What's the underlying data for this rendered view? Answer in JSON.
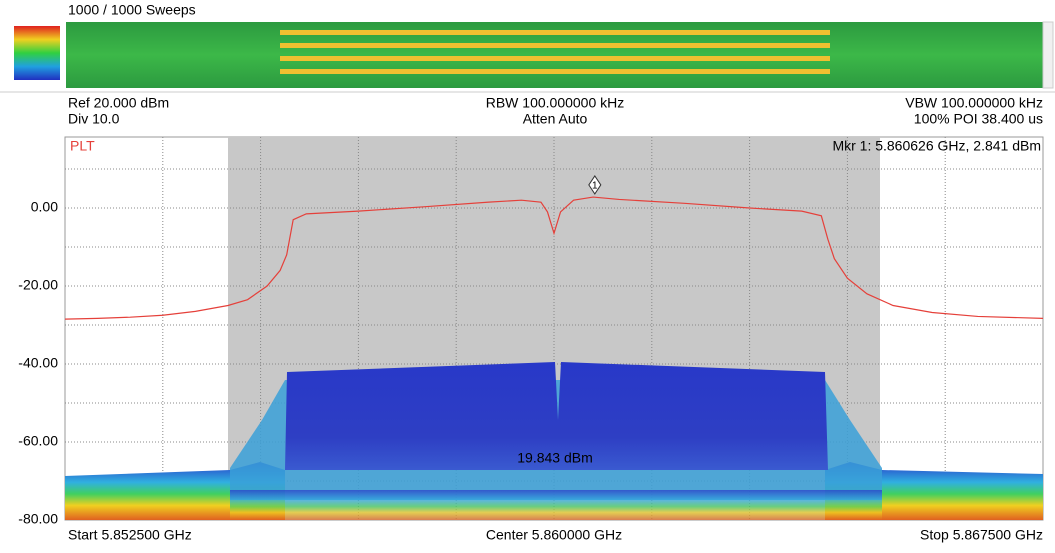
{
  "header": {
    "sweeps": "1000 / 1000 Sweeps"
  },
  "settings": {
    "ref": "Ref 20.000 dBm",
    "div": "Div 10.0",
    "rbw": "RBW 100.000000 kHz",
    "atten": "Atten Auto",
    "vbw": "VBW 100.000000 kHz",
    "poi": "100% POI 38.400 us"
  },
  "chart_data": {
    "type": "line",
    "marker_readout": "Mkr 1: 5.860626 GHz, 2.841 dBm",
    "marker": {
      "label": "1",
      "x": 5.860626,
      "y": 2.841
    },
    "annotation": "19.843 dBm",
    "xlim": [
      5.8525,
      5.8675
    ],
    "xticks": [
      {
        "value": 5.8525,
        "label": "Start 5.852500 GHz"
      },
      {
        "value": 5.86,
        "label": "Center 5.860000 GHz"
      },
      {
        "value": 5.8675,
        "label": "Stop 5.867500 GHz"
      }
    ],
    "xgrid": [
      5.854,
      5.8555,
      5.857,
      5.8585,
      5.86,
      5.8615,
      5.863,
      5.8645,
      5.866
    ],
    "ylim": [
      -80,
      20
    ],
    "yticks": [
      {
        "value": 0,
        "label": "0.00"
      },
      {
        "value": -20,
        "label": "-20.00"
      },
      {
        "value": -40,
        "label": "-40.00"
      },
      {
        "value": -60,
        "label": "-60.00"
      },
      {
        "value": -80,
        "label": "-80.00"
      }
    ],
    "ygrid": [
      10,
      0,
      -10,
      -20,
      -30,
      -40,
      -50,
      -60,
      -70
    ],
    "span_highlight": [
      5.855,
      5.865
    ],
    "x": [
      5.8525,
      5.853,
      5.8535,
      5.854,
      5.8545,
      5.855,
      5.8553,
      5.8556,
      5.8558,
      5.8559,
      5.856,
      5.8562,
      5.857,
      5.858,
      5.859,
      5.8595,
      5.8598,
      5.8599,
      5.86,
      5.8601,
      5.8603,
      5.8606,
      5.861,
      5.862,
      5.863,
      5.8638,
      5.8641,
      5.8642,
      5.8643,
      5.8645,
      5.8648,
      5.8652,
      5.8658,
      5.8665,
      5.8675
    ],
    "series": [
      {
        "name": "PLT",
        "color": "#e5403a",
        "values": [
          -28.5,
          -28.3,
          -28,
          -27.5,
          -26.5,
          -25,
          -23.5,
          -20,
          -16,
          -12,
          -3,
          -1.5,
          -0.8,
          0.3,
          1.5,
          2,
          1.5,
          -1,
          -6.5,
          -1,
          2,
          2.8,
          2.2,
          1.2,
          0,
          -0.8,
          -2,
          -8,
          -13,
          -18,
          -22,
          -25,
          -26.8,
          -27.8,
          -28.3
        ]
      }
    ]
  }
}
